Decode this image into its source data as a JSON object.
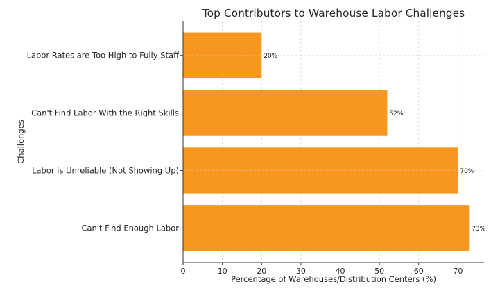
{
  "chart_data": {
    "type": "bar",
    "orientation": "horizontal",
    "title": "Top Contributors to Warehouse Labor Challenges",
    "xlabel": "Percentage of Warehouses/Distribution Centers (%)",
    "ylabel": "Challenges",
    "categories": [
      "Can't Find Enough Labor",
      "Labor is Unreliable (Not Showing Up)",
      "Can't Find Labor With the Right Skills",
      "Labor Rates are Too High to Fully Staff"
    ],
    "values": [
      73,
      70,
      52,
      20
    ],
    "data_labels": [
      "73%",
      "70%",
      "52%",
      "20%"
    ],
    "xlim": [
      0,
      76.65
    ],
    "xticks": [
      0,
      10,
      20,
      30,
      40,
      50,
      60,
      70
    ],
    "grid": true,
    "grid_style": "dashed",
    "bar_color": "#F7971F"
  }
}
